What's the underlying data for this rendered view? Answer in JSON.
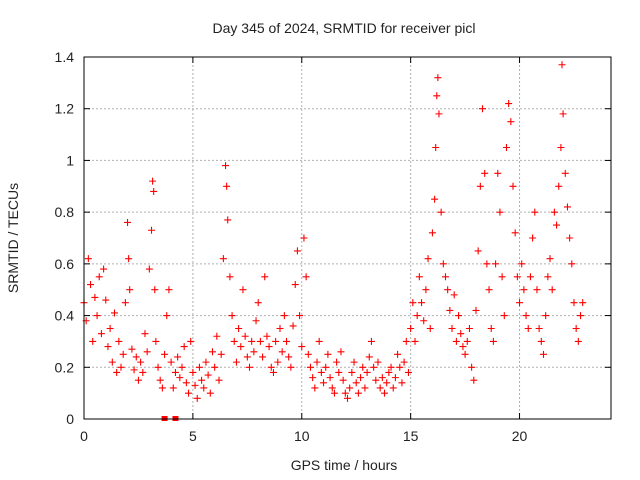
{
  "chart_data": {
    "type": "scatter",
    "title": "Day 345 of 2024, SRMTID for receiver picl",
    "xlabel": "GPS time / hours",
    "ylabel": "SRMTID / TECUs",
    "xlim": [
      0,
      24.2
    ],
    "ylim": [
      0,
      1.4
    ],
    "xticks": [
      0,
      5,
      10,
      15,
      20
    ],
    "yticks": [
      0,
      0.2,
      0.4,
      0.6,
      0.8,
      1,
      1.2,
      1.4
    ],
    "ytick_labels": [
      "0",
      "0.2",
      "0.4",
      "0.6",
      "0.8",
      "1",
      "1.2",
      "1.4"
    ],
    "grid": true,
    "marker": "plus",
    "color": "#ff0000",
    "series": [
      {
        "name": "picl",
        "x": [
          0.0,
          0.1,
          0.2,
          0.3,
          0.4,
          0.5,
          0.6,
          0.7,
          0.8,
          0.9,
          1.0,
          1.1,
          1.2,
          1.3,
          1.4,
          1.5,
          1.6,
          1.7,
          1.8,
          1.9,
          2.0,
          2.05,
          2.1,
          2.2,
          2.3,
          2.4,
          2.5,
          2.6,
          2.7,
          2.8,
          2.9,
          3.0,
          3.1,
          3.15,
          3.2,
          3.25,
          3.3,
          3.4,
          3.5,
          3.6,
          3.7,
          3.8,
          3.9,
          4.0,
          4.1,
          4.2,
          4.3,
          4.4,
          4.5,
          4.6,
          4.7,
          4.8,
          4.9,
          5.0,
          5.1,
          5.2,
          5.3,
          5.4,
          5.5,
          5.6,
          5.7,
          5.8,
          5.9,
          6.0,
          6.1,
          6.2,
          6.3,
          6.4,
          6.5,
          6.55,
          6.6,
          6.7,
          6.8,
          6.9,
          7.0,
          7.1,
          7.2,
          7.3,
          7.4,
          7.5,
          7.6,
          7.7,
          7.8,
          7.9,
          8.0,
          8.1,
          8.2,
          8.3,
          8.4,
          8.5,
          8.6,
          8.7,
          8.8,
          8.9,
          9.0,
          9.1,
          9.2,
          9.3,
          9.4,
          9.5,
          9.6,
          9.7,
          9.8,
          9.9,
          10.0,
          10.1,
          10.2,
          10.3,
          10.4,
          10.5,
          10.6,
          10.7,
          10.8,
          10.9,
          11.0,
          11.1,
          11.2,
          11.3,
          11.4,
          11.5,
          11.6,
          11.7,
          11.8,
          11.9,
          12.0,
          12.1,
          12.2,
          12.3,
          12.4,
          12.5,
          12.6,
          12.7,
          12.8,
          12.9,
          13.0,
          13.1,
          13.2,
          13.3,
          13.4,
          13.5,
          13.6,
          13.7,
          13.8,
          13.9,
          14.0,
          14.1,
          14.2,
          14.3,
          14.4,
          14.5,
          14.6,
          14.7,
          14.8,
          14.9,
          15.0,
          15.1,
          15.2,
          15.3,
          15.4,
          15.5,
          15.6,
          15.7,
          15.8,
          15.9,
          16.0,
          16.1,
          16.15,
          16.2,
          16.25,
          16.3,
          16.4,
          16.5,
          16.6,
          16.7,
          16.8,
          16.9,
          17.0,
          17.1,
          17.2,
          17.3,
          17.4,
          17.5,
          17.6,
          17.7,
          17.8,
          17.9,
          18.0,
          18.1,
          18.2,
          18.3,
          18.4,
          18.5,
          18.6,
          18.7,
          18.8,
          18.9,
          19.0,
          19.1,
          19.2,
          19.3,
          19.4,
          19.5,
          19.6,
          19.7,
          19.8,
          19.9,
          20.0,
          20.1,
          20.2,
          20.3,
          20.4,
          20.5,
          20.6,
          20.7,
          20.8,
          20.9,
          21.0,
          21.1,
          21.2,
          21.3,
          21.4,
          21.5,
          21.6,
          21.7,
          21.8,
          21.9,
          21.95,
          22.0,
          22.1,
          22.2,
          22.3,
          22.4,
          22.5,
          22.6,
          22.7,
          22.8,
          22.9
        ],
        "y": [
          0.45,
          0.38,
          0.62,
          0.52,
          0.3,
          0.47,
          0.4,
          0.55,
          0.33,
          0.58,
          0.46,
          0.28,
          0.35,
          0.22,
          0.41,
          0.18,
          0.3,
          0.2,
          0.25,
          0.45,
          0.76,
          0.62,
          0.5,
          0.27,
          0.19,
          0.24,
          0.15,
          0.22,
          0.18,
          0.33,
          0.26,
          0.58,
          0.73,
          0.92,
          0.88,
          0.5,
          0.3,
          0.2,
          0.15,
          0.12,
          0.25,
          0.4,
          0.5,
          0.22,
          0.12,
          0.18,
          0.24,
          0.16,
          0.2,
          0.28,
          0.14,
          0.1,
          0.3,
          0.18,
          0.13,
          0.08,
          0.2,
          0.15,
          0.12,
          0.22,
          0.17,
          0.1,
          0.26,
          0.2,
          0.32,
          0.15,
          0.25,
          0.62,
          0.98,
          0.9,
          0.77,
          0.55,
          0.4,
          0.3,
          0.22,
          0.35,
          0.28,
          0.5,
          0.32,
          0.24,
          0.2,
          0.3,
          0.26,
          0.38,
          0.45,
          0.3,
          0.24,
          0.55,
          0.32,
          0.28,
          0.2,
          0.18,
          0.3,
          0.22,
          0.35,
          0.26,
          0.4,
          0.3,
          0.24,
          0.2,
          0.36,
          0.52,
          0.65,
          0.4,
          0.28,
          0.7,
          0.55,
          0.25,
          0.2,
          0.16,
          0.12,
          0.22,
          0.3,
          0.18,
          0.14,
          0.2,
          0.25,
          0.16,
          0.12,
          0.1,
          0.22,
          0.18,
          0.26,
          0.15,
          0.1,
          0.08,
          0.12,
          0.18,
          0.22,
          0.14,
          0.1,
          0.16,
          0.2,
          0.12,
          0.18,
          0.24,
          0.3,
          0.2,
          0.15,
          0.22,
          0.12,
          0.16,
          0.1,
          0.14,
          0.18,
          0.2,
          0.12,
          0.16,
          0.25,
          0.2,
          0.14,
          0.22,
          0.3,
          0.18,
          0.35,
          0.45,
          0.3,
          0.4,
          0.55,
          0.45,
          0.38,
          0.5,
          0.62,
          0.35,
          0.72,
          0.85,
          1.05,
          1.25,
          1.32,
          1.18,
          0.8,
          0.6,
          0.55,
          0.5,
          0.42,
          0.35,
          0.48,
          0.3,
          0.4,
          0.33,
          0.28,
          0.25,
          0.3,
          0.35,
          0.2,
          0.15,
          0.42,
          0.65,
          0.9,
          1.2,
          0.95,
          0.6,
          0.5,
          0.35,
          0.3,
          0.6,
          0.95,
          0.8,
          0.55,
          0.4,
          1.05,
          1.22,
          1.15,
          0.9,
          0.72,
          0.55,
          0.45,
          0.6,
          0.5,
          0.4,
          0.35,
          0.55,
          0.7,
          0.8,
          0.5,
          0.35,
          0.3,
          0.25,
          0.4,
          0.55,
          0.62,
          0.5,
          0.8,
          0.75,
          0.9,
          1.05,
          1.37,
          1.18,
          0.95,
          0.82,
          0.7,
          0.6,
          0.45,
          0.35,
          0.3,
          0.4,
          0.45
        ]
      }
    ],
    "zero_markers_x": [
      3.7,
      4.2
    ]
  }
}
